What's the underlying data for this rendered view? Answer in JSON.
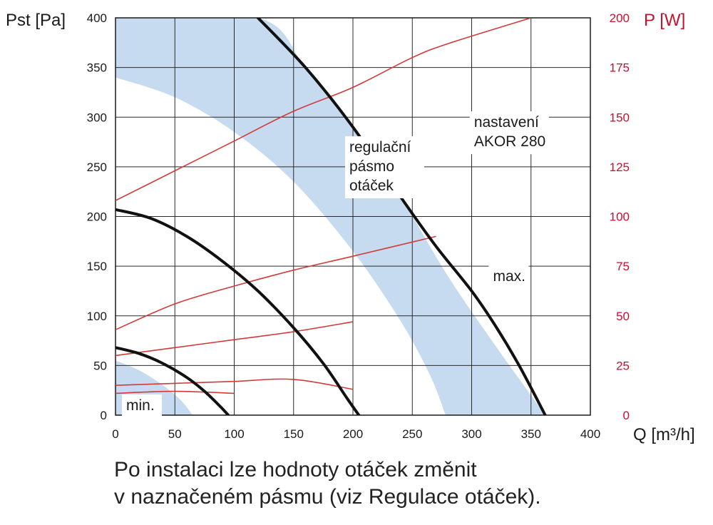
{
  "chart_data": {
    "type": "line",
    "x_axis": {
      "label": "Q [m³/h]",
      "min": 0,
      "max": 400,
      "ticks": [
        0,
        50,
        100,
        150,
        200,
        250,
        300,
        350,
        400
      ]
    },
    "y_axis_left": {
      "label": "Pst [Pa]",
      "min": 0,
      "max": 400,
      "ticks": [
        0,
        50,
        100,
        150,
        200,
        250,
        300,
        350,
        400
      ]
    },
    "y_axis_right": {
      "label": "P [W]",
      "min": 0,
      "max": 200,
      "ticks": [
        0,
        25,
        50,
        75,
        100,
        125,
        150,
        175,
        200
      ],
      "color": "#c8102e"
    },
    "grid": true,
    "band": {
      "color": "#c6dbef",
      "upper_curve": [
        [
          0,
          400
        ],
        [
          120,
          400
        ],
        [
          160,
          350
        ],
        [
          200,
          290
        ],
        [
          240,
          220
        ],
        [
          280,
          140
        ],
        [
          320,
          70
        ],
        [
          350,
          20
        ],
        [
          362,
          0
        ]
      ],
      "lower_curve": [
        [
          0,
          340
        ],
        [
          50,
          320
        ],
        [
          100,
          285
        ],
        [
          150,
          235
        ],
        [
          200,
          165
        ],
        [
          240,
          95
        ],
        [
          265,
          40
        ],
        [
          278,
          0
        ]
      ],
      "lower_small_band": [
        [
          0,
          55
        ],
        [
          20,
          45
        ],
        [
          40,
          30
        ],
        [
          55,
          15
        ],
        [
          65,
          0
        ]
      ]
    },
    "pressure_curves": [
      {
        "name": "max.",
        "points": [
          [
            120,
            400
          ],
          [
            160,
            350
          ],
          [
            200,
            290
          ],
          [
            240,
            220
          ],
          [
            270,
            170
          ],
          [
            300,
            125
          ],
          [
            320,
            90
          ],
          [
            340,
            50
          ],
          [
            362,
            0
          ]
        ]
      },
      {
        "name": "",
        "points": [
          [
            0,
            207
          ],
          [
            30,
            198
          ],
          [
            60,
            180
          ],
          [
            90,
            155
          ],
          [
            120,
            125
          ],
          [
            150,
            88
          ],
          [
            175,
            52
          ],
          [
            195,
            17
          ],
          [
            205,
            0
          ]
        ]
      },
      {
        "name": "min.",
        "points": [
          [
            0,
            68
          ],
          [
            20,
            62
          ],
          [
            40,
            52
          ],
          [
            60,
            38
          ],
          [
            75,
            24
          ],
          [
            88,
            9
          ],
          [
            95,
            0
          ]
        ]
      }
    ],
    "power_curves": [
      {
        "points": [
          [
            0,
            108
          ],
          [
            50,
            123
          ],
          [
            100,
            138
          ],
          [
            150,
            153
          ],
          [
            200,
            165
          ],
          [
            250,
            180
          ],
          [
            280,
            187
          ],
          [
            350,
            200
          ]
        ]
      },
      {
        "points": [
          [
            0,
            43
          ],
          [
            50,
            56
          ],
          [
            100,
            65
          ],
          [
            150,
            73
          ],
          [
            200,
            80
          ],
          [
            270,
            90
          ]
        ]
      },
      {
        "points": [
          [
            0,
            30
          ],
          [
            50,
            34
          ],
          [
            100,
            38
          ],
          [
            150,
            42
          ],
          [
            200,
            47
          ]
        ]
      },
      {
        "points": [
          [
            0,
            15
          ],
          [
            50,
            16
          ],
          [
            100,
            17
          ],
          [
            150,
            18
          ],
          [
            200,
            13
          ]
        ]
      },
      {
        "points": [
          [
            0,
            11
          ],
          [
            50,
            12
          ],
          [
            100,
            11
          ]
        ]
      }
    ],
    "annotations": [
      {
        "lines": [
          "nastavení",
          "AKOR 280"
        ],
        "x": 302,
        "y": 290
      },
      {
        "lines": [
          "regulační",
          "pásmo",
          "otáček"
        ],
        "x": 197,
        "y": 265
      },
      {
        "lines": [
          "max."
        ],
        "x": 318,
        "y": 135
      },
      {
        "lines": [
          "min."
        ],
        "x": 9,
        "y": 5
      }
    ],
    "curve_color": "#111111",
    "power_color": "#d23a3a"
  },
  "caption": {
    "line1": "Po instalaci lze hodnoty otáček změnit",
    "line2": "v naznačeném pásmu (viz Regulace otáček)."
  }
}
